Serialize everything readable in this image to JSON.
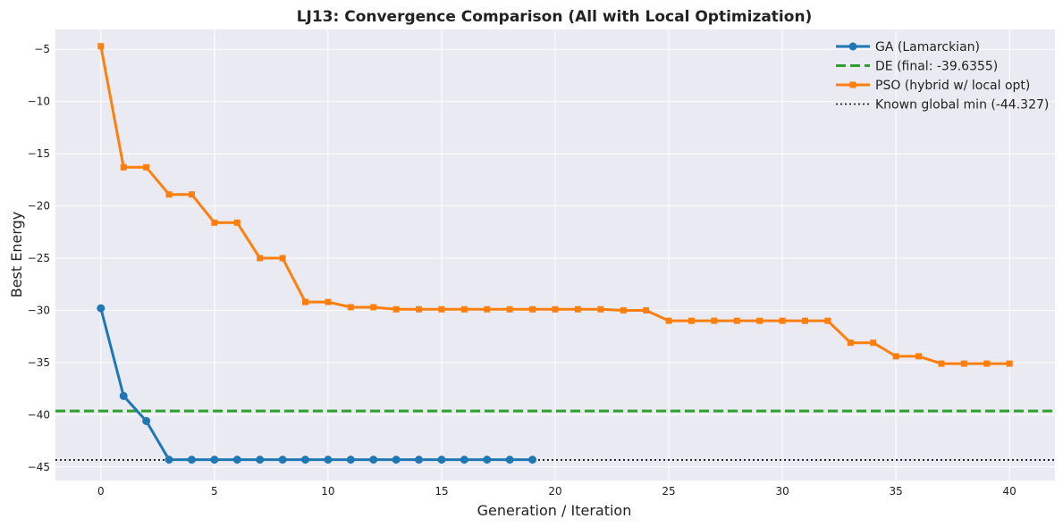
{
  "chart_data": {
    "type": "line",
    "title": "LJ13: Convergence Comparison (All with Local Optimization)",
    "xlabel": "Generation / Iteration",
    "ylabel": "Best Energy",
    "xlim": [
      -2,
      42
    ],
    "ylim": [
      -46.3,
      -3.1
    ],
    "xticks": [
      0,
      5,
      10,
      15,
      20,
      25,
      30,
      35,
      40
    ],
    "yticks": [
      -45,
      -40,
      -35,
      -30,
      -25,
      -20,
      -15,
      -10,
      -5
    ],
    "xtick_labels": [
      "0",
      "5",
      "10",
      "15",
      "20",
      "25",
      "30",
      "35",
      "40"
    ],
    "ytick_labels": [
      "−45",
      "−40",
      "−35",
      "−30",
      "−25",
      "−20",
      "−15",
      "−10",
      "−5"
    ],
    "grid": true,
    "legend_position": "top-right",
    "series": [
      {
        "name": "GA (Lamarckian)",
        "kind": "line-marker",
        "marker": "circle",
        "color": "#1f77b4",
        "x": [
          0,
          1,
          2,
          3,
          4,
          5,
          6,
          7,
          8,
          9,
          10,
          11,
          12,
          13,
          14,
          15,
          16,
          17,
          18,
          19
        ],
        "y": [
          -29.8,
          -38.2,
          -40.6,
          -44.3,
          -44.3,
          -44.3,
          -44.3,
          -44.3,
          -44.3,
          -44.3,
          -44.3,
          -44.3,
          -44.3,
          -44.3,
          -44.3,
          -44.3,
          -44.3,
          -44.3,
          -44.3,
          -44.3
        ]
      },
      {
        "name": "DE (final: -39.6355)",
        "kind": "hline",
        "style": "dashed",
        "color": "#2ca02c",
        "y": -39.6355
      },
      {
        "name": "PSO (hybrid w/ local opt)",
        "kind": "line-marker",
        "marker": "square",
        "color": "#ff7f0e",
        "x": [
          0,
          1,
          2,
          3,
          4,
          5,
          6,
          7,
          8,
          9,
          10,
          11,
          12,
          13,
          14,
          15,
          16,
          17,
          18,
          19,
          20,
          21,
          22,
          23,
          24,
          25,
          26,
          27,
          28,
          29,
          30,
          31,
          32,
          33,
          34,
          35,
          36,
          37,
          38,
          39,
          40
        ],
        "y": [
          -4.7,
          -16.3,
          -16.3,
          -18.9,
          -18.9,
          -21.6,
          -21.6,
          -25.0,
          -25.0,
          -29.2,
          -29.2,
          -29.7,
          -29.7,
          -29.9,
          -29.9,
          -29.9,
          -29.9,
          -29.9,
          -29.9,
          -29.9,
          -29.9,
          -29.9,
          -29.9,
          -30.0,
          -30.0,
          -31.0,
          -31.0,
          -31.0,
          -31.0,
          -31.0,
          -31.0,
          -31.0,
          -31.0,
          -33.1,
          -33.1,
          -34.4,
          -34.4,
          -35.1,
          -35.1,
          -35.1,
          -35.1
        ]
      },
      {
        "name": "Known global min (-44.327)",
        "kind": "hline",
        "style": "dotted",
        "color": "#000000",
        "y": -44.327
      }
    ]
  }
}
